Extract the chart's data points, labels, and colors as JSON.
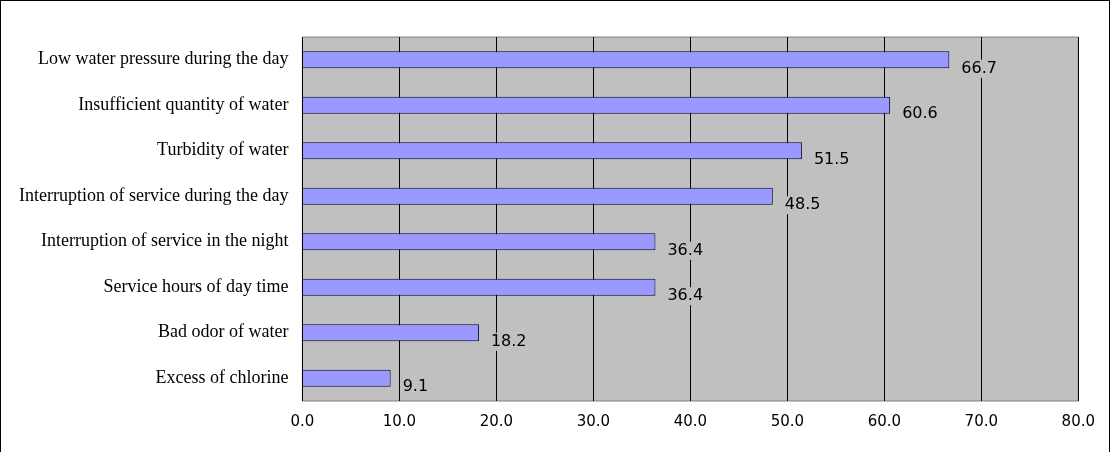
{
  "chart_data": {
    "type": "bar",
    "orientation": "horizontal",
    "categories": [
      "Low water pressure during the day",
      "Insufficient quantity of water",
      "Turbidity of water",
      "Interruption of service during the day",
      "Interruption of service in the night",
      "Service hours of day time",
      "Bad odor of water",
      "Excess of chlorine"
    ],
    "values": [
      66.7,
      60.6,
      51.5,
      48.5,
      36.4,
      36.4,
      18.2,
      9.1
    ],
    "color": "#9999ff",
    "xlim": [
      0,
      80
    ],
    "xticks": [
      {
        "value": 0,
        "label": "0.0"
      },
      {
        "value": 10,
        "label": "10.0"
      },
      {
        "value": 20,
        "label": "20.0"
      },
      {
        "value": 30,
        "label": "30.0"
      },
      {
        "value": 40,
        "label": "40.0"
      },
      {
        "value": 50,
        "label": "50.0"
      },
      {
        "value": 60,
        "label": "60.0"
      },
      {
        "value": 70,
        "label": "70.0"
      },
      {
        "value": 80,
        "label": "80.0"
      }
    ],
    "grid": "x",
    "data_labels": true
  }
}
